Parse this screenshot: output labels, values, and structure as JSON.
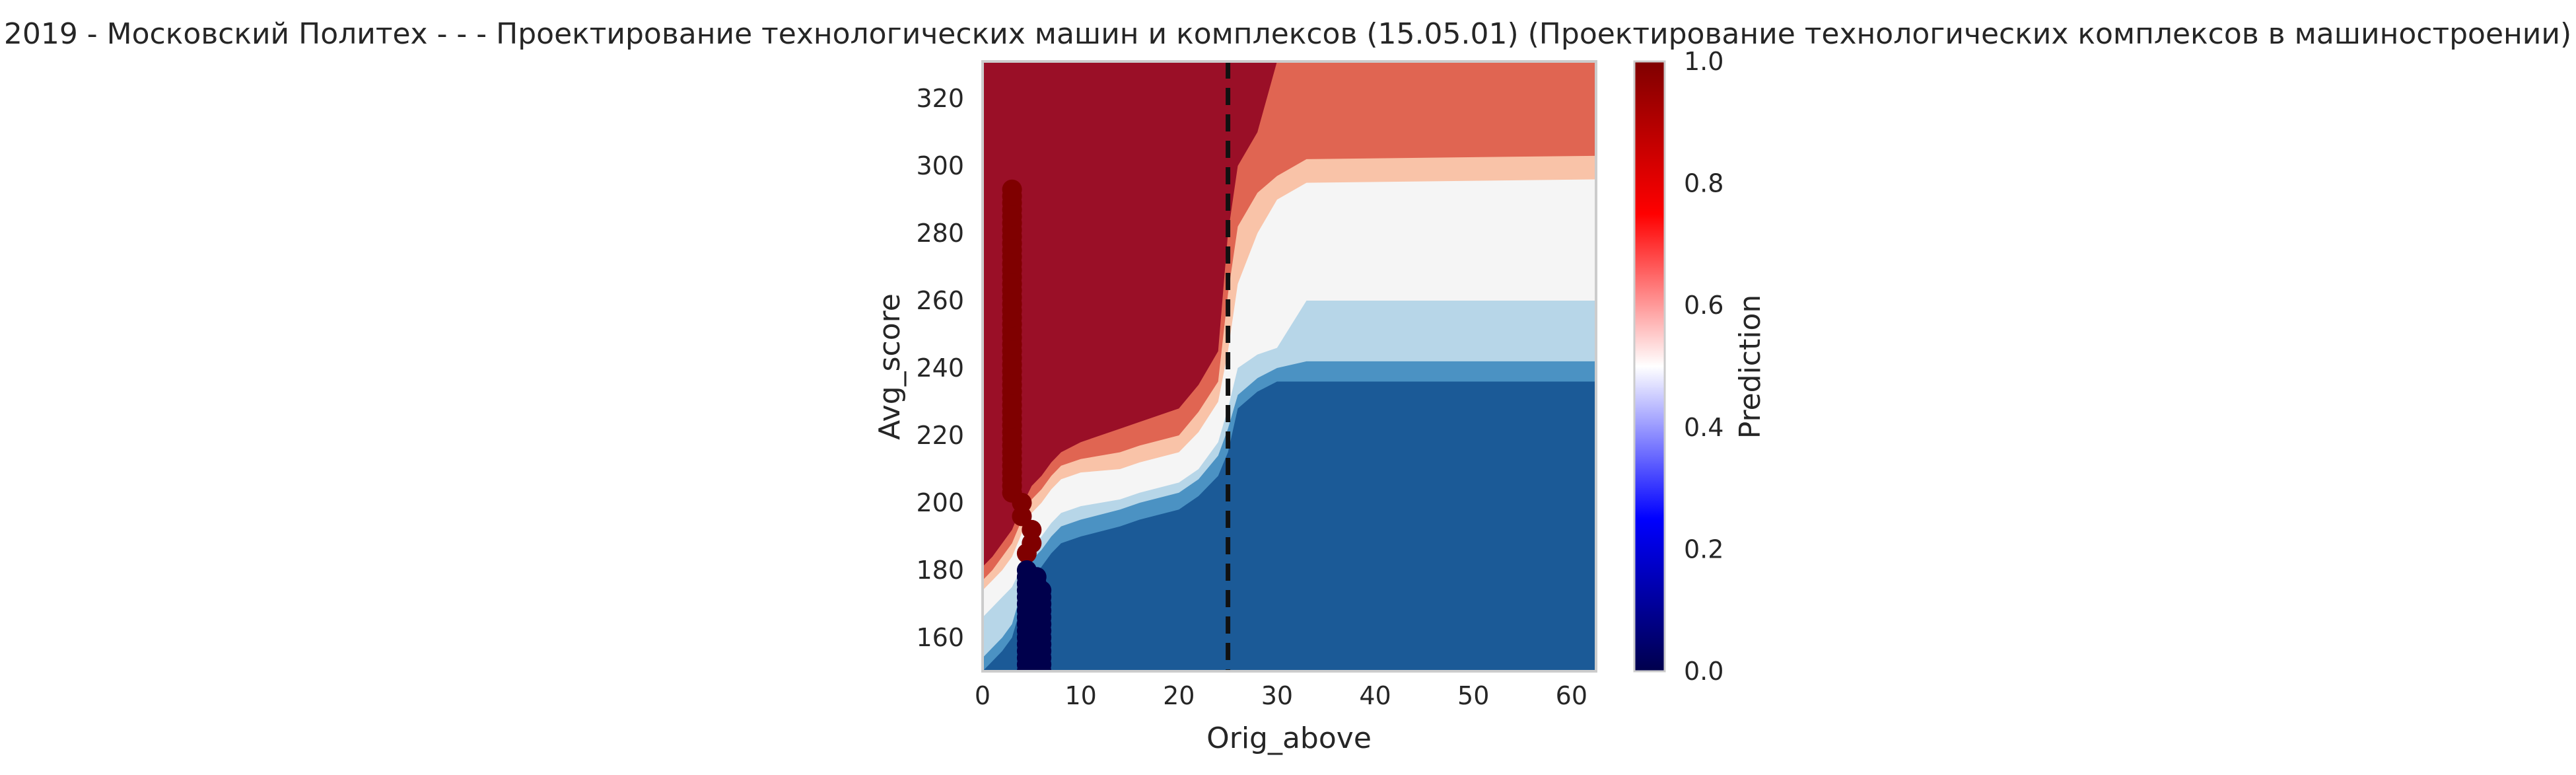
{
  "chart_data": {
    "type": "heatmap",
    "title": "2019 - Московский Политех - - - Проектирование технологических машин и комплексов (15.05.01) (Проектирование технологических комплексов в машиностроении)",
    "xlabel": "Orig_above",
    "ylabel": "Avg_score",
    "xlim": [
      0,
      62.5
    ],
    "ylim": [
      150,
      331
    ],
    "x_ticks": [
      "0",
      "10",
      "20",
      "30",
      "40",
      "50",
      "60"
    ],
    "x_tick_values": [
      0,
      10,
      20,
      30,
      40,
      50,
      60
    ],
    "y_ticks": [
      "160",
      "180",
      "200",
      "220",
      "240",
      "260",
      "280",
      "300",
      "320"
    ],
    "y_tick_values": [
      160,
      180,
      200,
      220,
      240,
      260,
      280,
      300,
      320
    ],
    "vertical_line": {
      "x": 25,
      "style": "dashed",
      "color": "#111111"
    },
    "colorbar": {
      "label": "Prediction",
      "range": [
        0,
        1
      ],
      "ticks": [
        "0.0",
        "0.2",
        "0.4",
        "0.6",
        "0.8",
        "1.0"
      ],
      "tick_values": [
        0,
        0.2,
        0.4,
        0.6,
        0.8,
        1.0
      ],
      "colormap": "seismic"
    },
    "contour_levels": [
      {
        "level": "0.0-0.2",
        "color": "#1b5a97"
      },
      {
        "level": "0.2-0.3",
        "color": "#4b92c3"
      },
      {
        "level": "0.3-0.4",
        "color": "#b7d6e8"
      },
      {
        "level": "0.4-0.6",
        "color": "#f5f5f5"
      },
      {
        "level": "0.6-0.7",
        "color": "#f9c3a8"
      },
      {
        "level": "0.7-0.8",
        "color": "#e06552"
      },
      {
        "level": "0.8-1.0",
        "color": "#9a0f27"
      }
    ],
    "boundary_0_2": {
      "x": [
        0,
        1,
        2,
        3,
        4,
        5,
        6,
        7,
        8,
        10,
        14,
        16,
        20,
        22,
        24,
        25,
        26,
        28,
        30,
        33,
        62.5
      ],
      "y": [
        150,
        153,
        156,
        160,
        170,
        178,
        181,
        185,
        188,
        190,
        193,
        195,
        198,
        202,
        208,
        215,
        228,
        233,
        236,
        236,
        236
      ]
    },
    "boundary_0_3": {
      "x": [
        0,
        1,
        2,
        3,
        4,
        5,
        6,
        7,
        8,
        10,
        14,
        16,
        20,
        22,
        24,
        25,
        26,
        28,
        30,
        33,
        62.5
      ],
      "y": [
        154,
        157,
        160,
        164,
        174,
        183,
        186,
        190,
        193,
        195,
        198,
        200,
        203,
        207,
        214,
        222,
        232,
        237,
        240,
        242,
        242
      ]
    },
    "boundary_0_4": {
      "x": [
        0,
        1,
        2,
        3,
        4,
        5,
        6,
        7,
        8,
        10,
        14,
        16,
        20,
        22,
        24,
        25,
        26,
        28,
        30,
        33,
        62.5
      ],
      "y": [
        166,
        169,
        172,
        175,
        181,
        187,
        190,
        194,
        197,
        199,
        201,
        203,
        206,
        210,
        218,
        228,
        240,
        244,
        246,
        260,
        260
      ]
    },
    "boundary_0_6": {
      "x": [
        0,
        1,
        2,
        3,
        4,
        5,
        6,
        7,
        8,
        10,
        14,
        16,
        20,
        22,
        24,
        25,
        26,
        28,
        30,
        33,
        62.5
      ],
      "y": [
        174,
        177,
        180,
        184,
        191,
        197,
        200,
        204,
        207,
        209,
        210,
        212,
        215,
        221,
        230,
        245,
        265,
        280,
        290,
        295,
        296
      ]
    },
    "boundary_0_7": {
      "x": [
        0,
        1,
        2,
        3,
        4,
        5,
        6,
        7,
        8,
        10,
        14,
        16,
        20,
        22,
        24,
        25,
        26,
        28,
        30,
        33,
        62.5
      ],
      "y": [
        177,
        180,
        184,
        188,
        195,
        201,
        204,
        208,
        211,
        213,
        215,
        217,
        220,
        227,
        236,
        262,
        282,
        292,
        297,
        302,
        303
      ]
    },
    "boundary_0_8": {
      "x": [
        0,
        1,
        2,
        3,
        4,
        5,
        6,
        7,
        8,
        10,
        14,
        16,
        20,
        22,
        24,
        25,
        26,
        28,
        30,
        33,
        62.5
      ],
      "y": [
        181,
        184,
        188,
        192,
        199,
        205,
        208,
        212,
        215,
        218,
        222,
        224,
        228,
        235,
        245,
        280,
        300,
        310,
        331,
        331,
        331
      ]
    },
    "points_class_1": {
      "x": 3,
      "y_min": 203,
      "y_max": 294,
      "extra": [
        [
          4,
          200
        ],
        [
          4,
          196
        ],
        [
          5,
          192
        ],
        [
          5,
          188
        ],
        [
          4.5,
          185
        ]
      ]
    },
    "points_class_0": {
      "x_values": [
        4.5,
        5.5,
        6
      ],
      "y_min": 150,
      "y_max": 181
    }
  }
}
